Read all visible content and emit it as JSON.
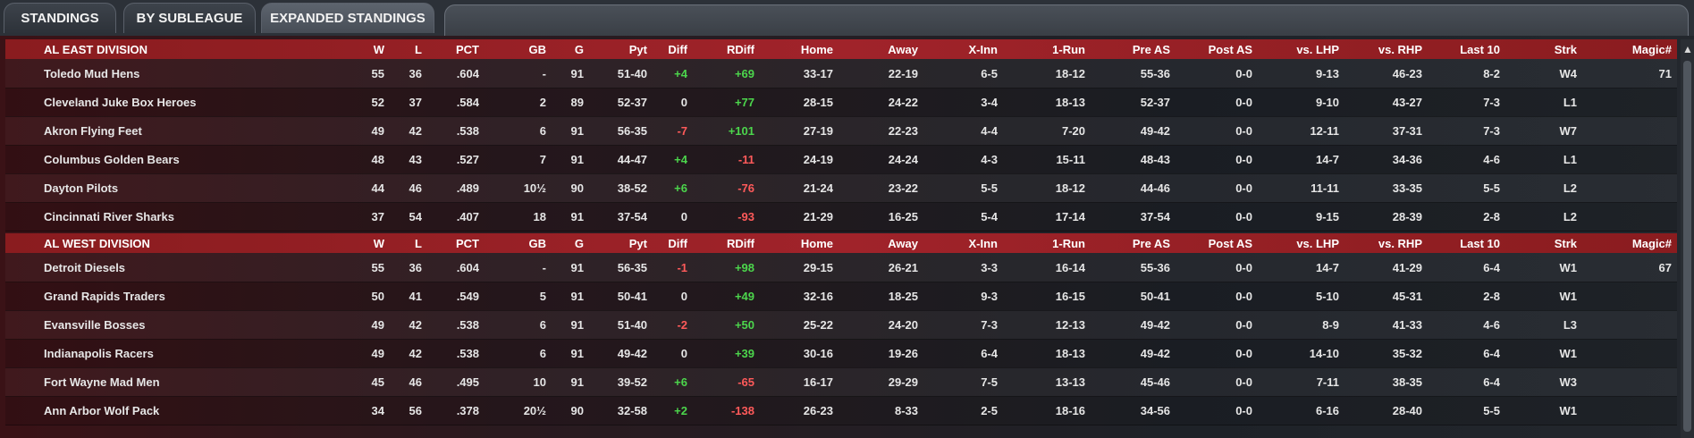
{
  "tabs": [
    {
      "label": "STANDINGS",
      "active": false
    },
    {
      "label": "BY SUBLEAGUE",
      "active": false
    },
    {
      "label": "EXPANDED STANDINGS",
      "active": true
    }
  ],
  "columns": [
    "W",
    "L",
    "PCT",
    "GB",
    "G",
    "Pyt",
    "Diff",
    "RDiff",
    "Home",
    "Away",
    "X-Inn",
    "1-Run",
    "Pre AS",
    "Post AS",
    "vs. LHP",
    "vs. RHP",
    "Last 10",
    "Strk",
    "Magic#"
  ],
  "divisions": [
    {
      "name": "AL EAST DIVISION",
      "teams": [
        {
          "team": "Toledo  Mud Hens",
          "W": "55",
          "L": "36",
          "PCT": ".604",
          "GB": "-",
          "G": "91",
          "Pyt": "51-40",
          "Diff": "+4",
          "RDiff": "+69",
          "Home": "33-17",
          "Away": "22-19",
          "XInn": "6-5",
          "OneRun": "18-12",
          "PreAS": "55-36",
          "PostAS": "0-0",
          "vsLHP": "9-13",
          "vsRHP": "46-23",
          "Last10": "8-2",
          "Strk": "W4",
          "Magic": "71"
        },
        {
          "team": "Cleveland Juke Box Heroes",
          "W": "52",
          "L": "37",
          "PCT": ".584",
          "GB": "2",
          "G": "89",
          "Pyt": "52-37",
          "Diff": "0",
          "RDiff": "+77",
          "Home": "28-15",
          "Away": "24-22",
          "XInn": "3-4",
          "OneRun": "18-13",
          "PreAS": "52-37",
          "PostAS": "0-0",
          "vsLHP": "9-10",
          "vsRHP": "43-27",
          "Last10": "7-3",
          "Strk": "L1",
          "Magic": ""
        },
        {
          "team": "Akron  Flying Feet",
          "W": "49",
          "L": "42",
          "PCT": ".538",
          "GB": "6",
          "G": "91",
          "Pyt": "56-35",
          "Diff": "-7",
          "RDiff": "+101",
          "Home": "27-19",
          "Away": "22-23",
          "XInn": "4-4",
          "OneRun": "7-20",
          "PreAS": "49-42",
          "PostAS": "0-0",
          "vsLHP": "12-11",
          "vsRHP": "37-31",
          "Last10": "7-3",
          "Strk": "W7",
          "Magic": ""
        },
        {
          "team": "Columbus Golden Bears",
          "W": "48",
          "L": "43",
          "PCT": ".527",
          "GB": "7",
          "G": "91",
          "Pyt": "44-47",
          "Diff": "+4",
          "RDiff": "-11",
          "Home": "24-19",
          "Away": "24-24",
          "XInn": "4-3",
          "OneRun": "15-11",
          "PreAS": "48-43",
          "PostAS": "0-0",
          "vsLHP": "14-7",
          "vsRHP": "34-36",
          "Last10": "4-6",
          "Strk": "L1",
          "Magic": ""
        },
        {
          "team": "Dayton Pilots",
          "W": "44",
          "L": "46",
          "PCT": ".489",
          "GB": "10½",
          "G": "90",
          "Pyt": "38-52",
          "Diff": "+6",
          "RDiff": "-76",
          "Home": "21-24",
          "Away": "23-22",
          "XInn": "5-5",
          "OneRun": "18-12",
          "PreAS": "44-46",
          "PostAS": "0-0",
          "vsLHP": "11-11",
          "vsRHP": "33-35",
          "Last10": "5-5",
          "Strk": "L2",
          "Magic": ""
        },
        {
          "team": "Cincinnati River Sharks",
          "W": "37",
          "L": "54",
          "PCT": ".407",
          "GB": "18",
          "G": "91",
          "Pyt": "37-54",
          "Diff": "0",
          "RDiff": "-93",
          "Home": "21-29",
          "Away": "16-25",
          "XInn": "5-4",
          "OneRun": "17-14",
          "PreAS": "37-54",
          "PostAS": "0-0",
          "vsLHP": "9-15",
          "vsRHP": "28-39",
          "Last10": "2-8",
          "Strk": "L2",
          "Magic": ""
        }
      ]
    },
    {
      "name": "AL WEST DIVISION",
      "teams": [
        {
          "team": "Detroit Diesels",
          "W": "55",
          "L": "36",
          "PCT": ".604",
          "GB": "-",
          "G": "91",
          "Pyt": "56-35",
          "Diff": "-1",
          "RDiff": "+98",
          "Home": "29-15",
          "Away": "26-21",
          "XInn": "3-3",
          "OneRun": "16-14",
          "PreAS": "55-36",
          "PostAS": "0-0",
          "vsLHP": "14-7",
          "vsRHP": "41-29",
          "Last10": "6-4",
          "Strk": "W1",
          "Magic": "67"
        },
        {
          "team": "Grand Rapids Traders",
          "W": "50",
          "L": "41",
          "PCT": ".549",
          "GB": "5",
          "G": "91",
          "Pyt": "50-41",
          "Diff": "0",
          "RDiff": "+49",
          "Home": "32-16",
          "Away": "18-25",
          "XInn": "9-3",
          "OneRun": "16-15",
          "PreAS": "50-41",
          "PostAS": "0-0",
          "vsLHP": "5-10",
          "vsRHP": "45-31",
          "Last10": "2-8",
          "Strk": "W1",
          "Magic": ""
        },
        {
          "team": "Evansville Bosses",
          "W": "49",
          "L": "42",
          "PCT": ".538",
          "GB": "6",
          "G": "91",
          "Pyt": "51-40",
          "Diff": "-2",
          "RDiff": "+50",
          "Home": "25-22",
          "Away": "24-20",
          "XInn": "7-3",
          "OneRun": "12-13",
          "PreAS": "49-42",
          "PostAS": "0-0",
          "vsLHP": "8-9",
          "vsRHP": "41-33",
          "Last10": "4-6",
          "Strk": "L3",
          "Magic": ""
        },
        {
          "team": "Indianapolis Racers",
          "W": "49",
          "L": "42",
          "PCT": ".538",
          "GB": "6",
          "G": "91",
          "Pyt": "49-42",
          "Diff": "0",
          "RDiff": "+39",
          "Home": "30-16",
          "Away": "19-26",
          "XInn": "6-4",
          "OneRun": "18-13",
          "PreAS": "49-42",
          "PostAS": "0-0",
          "vsLHP": "14-10",
          "vsRHP": "35-32",
          "Last10": "6-4",
          "Strk": "W1",
          "Magic": ""
        },
        {
          "team": "Fort Wayne Mad Men",
          "W": "45",
          "L": "46",
          "PCT": ".495",
          "GB": "10",
          "G": "91",
          "Pyt": "39-52",
          "Diff": "+6",
          "RDiff": "-65",
          "Home": "16-17",
          "Away": "29-29",
          "XInn": "7-5",
          "OneRun": "13-13",
          "PreAS": "45-46",
          "PostAS": "0-0",
          "vsLHP": "7-11",
          "vsRHP": "38-35",
          "Last10": "6-4",
          "Strk": "W3",
          "Magic": ""
        },
        {
          "team": "Ann Arbor Wolf Pack",
          "W": "34",
          "L": "56",
          "PCT": ".378",
          "GB": "20½",
          "G": "90",
          "Pyt": "32-58",
          "Diff": "+2",
          "RDiff": "-138",
          "Home": "26-23",
          "Away": "8-33",
          "XInn": "2-5",
          "OneRun": "18-16",
          "PreAS": "34-56",
          "PostAS": "0-0",
          "vsLHP": "6-16",
          "vsRHP": "28-40",
          "Last10": "5-5",
          "Strk": "W1",
          "Magic": ""
        }
      ]
    }
  ],
  "colors": {
    "header_red": "#a0232a",
    "positive": "#4cd64c",
    "negative": "#ff5a5a"
  }
}
